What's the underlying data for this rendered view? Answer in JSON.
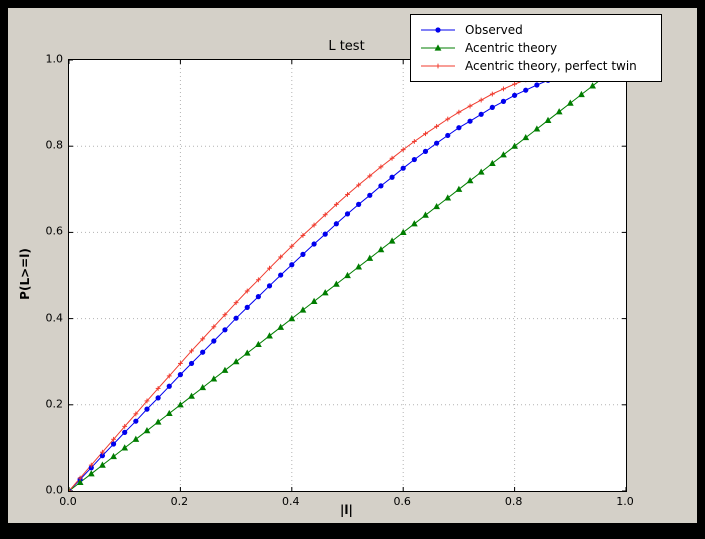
{
  "window": {
    "background": "#000000"
  },
  "colors": {
    "figure_bg": "#d4d0c8",
    "plot_bg": "#ffffff",
    "axis_frame": "#000000",
    "grid": "#b3b3b3",
    "tick_label": "#000000"
  },
  "chart_data": {
    "type": "line",
    "title": "L test",
    "xlabel": "|l|",
    "ylabel": "P(L>=l)",
    "xlim": [
      0.0,
      1.0
    ],
    "ylim": [
      0.0,
      1.0
    ],
    "xticks": [
      0.0,
      0.2,
      0.4,
      0.6,
      0.8,
      1.0
    ],
    "yticks": [
      0.0,
      0.2,
      0.4,
      0.6,
      0.8,
      1.0
    ],
    "grid": true,
    "legend_position": "upper right",
    "series": [
      {
        "name": "Observed",
        "color": "#0000ee",
        "marker": "circle",
        "x": [
          0.0,
          0.02,
          0.04,
          0.06,
          0.08,
          0.1,
          0.12,
          0.14,
          0.16,
          0.18,
          0.2,
          0.22,
          0.24,
          0.26,
          0.28,
          0.3,
          0.32,
          0.34,
          0.36,
          0.38,
          0.4,
          0.42,
          0.44,
          0.46,
          0.48,
          0.5,
          0.52,
          0.54,
          0.56,
          0.58,
          0.6,
          0.62,
          0.64,
          0.66,
          0.68,
          0.7,
          0.72,
          0.74,
          0.76,
          0.78,
          0.8,
          0.82,
          0.84,
          0.86
        ],
        "y": [
          0.0,
          0.027,
          0.054,
          0.082,
          0.109,
          0.136,
          0.162,
          0.19,
          0.216,
          0.243,
          0.27,
          0.296,
          0.322,
          0.348,
          0.374,
          0.401,
          0.426,
          0.451,
          0.476,
          0.501,
          0.525,
          0.549,
          0.573,
          0.596,
          0.62,
          0.643,
          0.665,
          0.686,
          0.708,
          0.728,
          0.749,
          0.769,
          0.788,
          0.807,
          0.825,
          0.843,
          0.858,
          0.874,
          0.89,
          0.904,
          0.918,
          0.93,
          0.942,
          0.953
        ]
      },
      {
        "name": "Acentric theory",
        "color": "#007d00",
        "marker": "triangle_up",
        "x": [
          0.0,
          0.02,
          0.04,
          0.06,
          0.08,
          0.1,
          0.12,
          0.14,
          0.16,
          0.18,
          0.2,
          0.22,
          0.24,
          0.26,
          0.28,
          0.3,
          0.32,
          0.34,
          0.36,
          0.38,
          0.4,
          0.42,
          0.44,
          0.46,
          0.48,
          0.5,
          0.52,
          0.54,
          0.56,
          0.58,
          0.6,
          0.62,
          0.64,
          0.66,
          0.68,
          0.7,
          0.72,
          0.74,
          0.76,
          0.78,
          0.8,
          0.82,
          0.84,
          0.86,
          0.88,
          0.9,
          0.92,
          0.94,
          0.96
        ],
        "y": [
          0.0,
          0.02,
          0.04,
          0.06,
          0.08,
          0.1,
          0.12,
          0.14,
          0.16,
          0.18,
          0.2,
          0.22,
          0.24,
          0.26,
          0.28,
          0.3,
          0.32,
          0.34,
          0.36,
          0.38,
          0.4,
          0.42,
          0.44,
          0.46,
          0.48,
          0.5,
          0.52,
          0.54,
          0.56,
          0.58,
          0.6,
          0.62,
          0.64,
          0.66,
          0.68,
          0.7,
          0.72,
          0.74,
          0.76,
          0.78,
          0.8,
          0.82,
          0.84,
          0.86,
          0.88,
          0.9,
          0.92,
          0.94,
          0.96
        ]
      },
      {
        "name": "Acentric theory, perfect twin",
        "color": "#f03b2e",
        "marker": "plus",
        "x": [
          0.0,
          0.02,
          0.04,
          0.06,
          0.08,
          0.1,
          0.12,
          0.14,
          0.16,
          0.18,
          0.2,
          0.22,
          0.24,
          0.26,
          0.28,
          0.3,
          0.32,
          0.34,
          0.36,
          0.38,
          0.4,
          0.42,
          0.44,
          0.46,
          0.48,
          0.5,
          0.52,
          0.54,
          0.56,
          0.58,
          0.6,
          0.62,
          0.64,
          0.66,
          0.68,
          0.7,
          0.72,
          0.74,
          0.76,
          0.78,
          0.8,
          0.82,
          0.84,
          0.86
        ],
        "y": [
          0.0,
          0.03,
          0.06,
          0.09,
          0.12,
          0.15,
          0.179,
          0.209,
          0.238,
          0.267,
          0.296,
          0.325,
          0.353,
          0.381,
          0.409,
          0.437,
          0.464,
          0.49,
          0.517,
          0.543,
          0.568,
          0.593,
          0.617,
          0.641,
          0.665,
          0.688,
          0.71,
          0.731,
          0.752,
          0.772,
          0.792,
          0.811,
          0.829,
          0.846,
          0.863,
          0.879,
          0.893,
          0.907,
          0.921,
          0.933,
          0.944,
          0.954,
          0.964,
          0.972
        ]
      }
    ]
  }
}
